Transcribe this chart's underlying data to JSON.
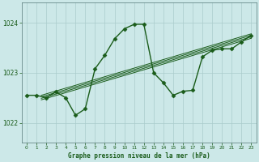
{
  "title": "Graphe pression niveau de la mer (hPa)",
  "bg_color": "#cce8e8",
  "grid_color": "#aacccc",
  "line_color": "#1a5c1a",
  "xlim": [
    -0.5,
    23.5
  ],
  "ylim": [
    1021.6,
    1024.4
  ],
  "yticks": [
    1022,
    1023,
    1024
  ],
  "xticks": [
    0,
    1,
    2,
    3,
    4,
    5,
    6,
    7,
    8,
    9,
    10,
    11,
    12,
    13,
    14,
    15,
    16,
    17,
    18,
    19,
    20,
    21,
    22,
    23
  ],
  "main_x": [
    0,
    1,
    2,
    3,
    4,
    5,
    6,
    7,
    8,
    9,
    10,
    11,
    12,
    13,
    14,
    15,
    16,
    17,
    18,
    19,
    20,
    21,
    22,
    23
  ],
  "main_y": [
    1022.55,
    1022.55,
    1022.5,
    1022.62,
    1022.5,
    1022.15,
    1022.28,
    1023.08,
    1023.35,
    1023.68,
    1023.88,
    1023.97,
    1023.97,
    1023.0,
    1022.8,
    1022.55,
    1022.63,
    1022.65,
    1023.32,
    1023.45,
    1023.48,
    1023.48,
    1023.62,
    1023.75
  ],
  "trend_lines": [
    {
      "x0": 1.5,
      "y0": 1022.55,
      "x1": 23,
      "y1": 1023.78
    },
    {
      "x0": 1.5,
      "y0": 1022.52,
      "x1": 23,
      "y1": 1023.75
    },
    {
      "x0": 1.5,
      "y0": 1022.49,
      "x1": 23,
      "y1": 1023.72
    },
    {
      "x0": 1.5,
      "y0": 1022.46,
      "x1": 23,
      "y1": 1023.69
    }
  ],
  "marker_style": "D",
  "marker_size": 2.5,
  "line_width": 1.0
}
